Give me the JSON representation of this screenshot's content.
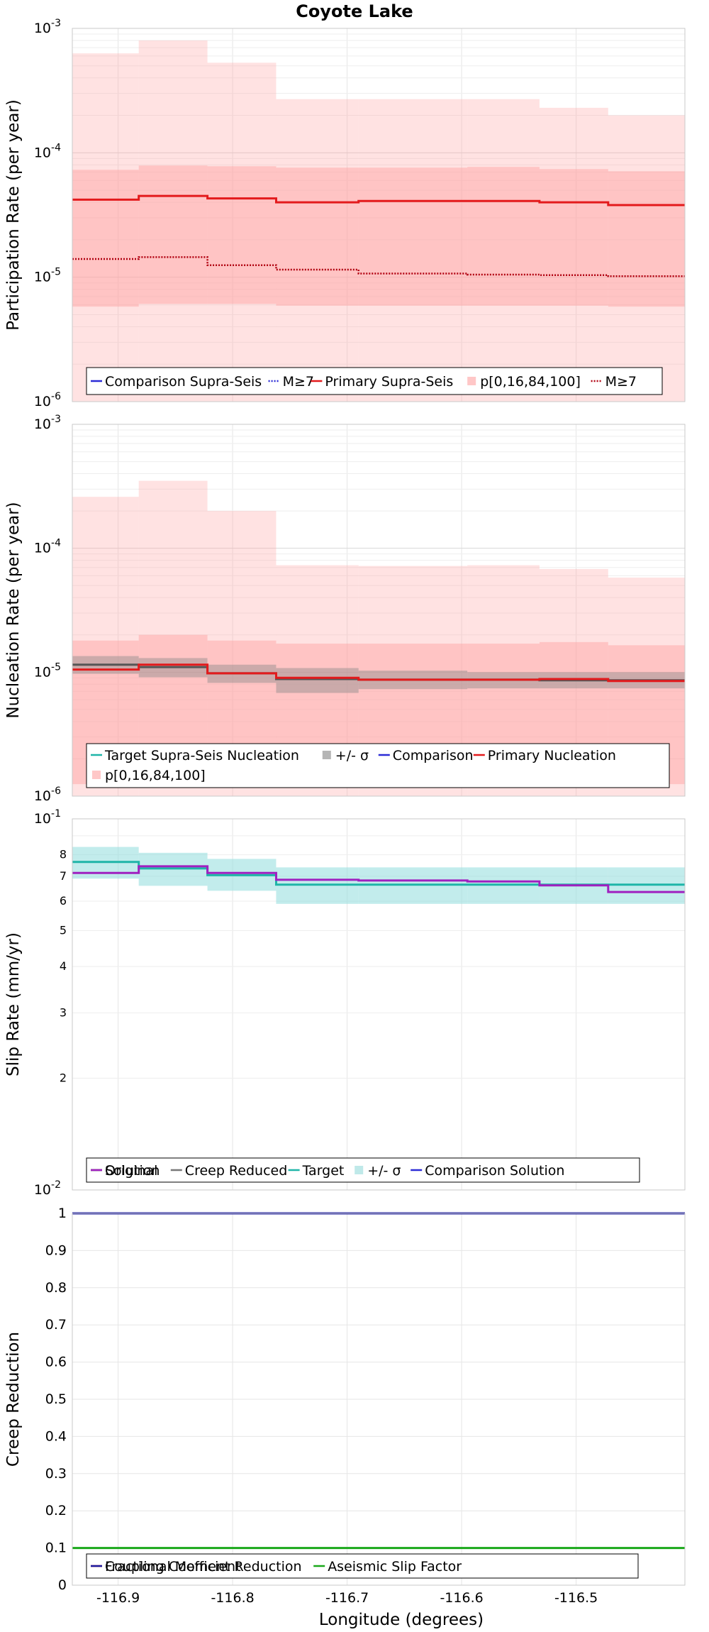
{
  "title": "Coyote Lake",
  "xlabel": "Longitude (degrees)",
  "x_ticks": [
    "-116.9",
    "-116.8",
    "-116.7",
    "-116.6",
    "-116.5"
  ],
  "chart_data": [
    {
      "type": "line",
      "subtype": "step",
      "ylabel": "Participation Rate (per year)",
      "yscale": "log",
      "ylim": [
        1e-06,
        0.001
      ],
      "xlim": [
        -116.94,
        -116.405
      ],
      "x_edges": [
        -116.94,
        -116.882,
        -116.822,
        -116.762,
        -116.69,
        -116.595,
        -116.532,
        -116.472,
        -116.405
      ],
      "bands": [
        {
          "name": "p[0,16,84,100]",
          "color": "#ff9f9f",
          "opacity": 0.3,
          "lower": [
            1e-06,
            1e-06,
            1e-06,
            1e-06,
            1e-06,
            1e-06,
            1e-06,
            1e-06
          ],
          "upper": [
            0.00063,
            0.0008,
            0.00053,
            0.00027,
            0.00027,
            0.00027,
            0.00023,
            0.0002
          ]
        },
        {
          "name": "p[0,16,84,100]",
          "color": "#ff9f9f",
          "opacity": 0.45,
          "lower": [
            5.8e-06,
            6.1e-06,
            6.1e-06,
            5.9e-06,
            5.9e-06,
            5.9e-06,
            5.9e-06,
            5.8e-06
          ],
          "upper": [
            7.3e-05,
            7.9e-05,
            7.8e-05,
            7.6e-05,
            7.6e-05,
            7.7e-05,
            7.4e-05,
            7.1e-05
          ]
        }
      ],
      "series": [
        {
          "name": "Primary Supra-Seis",
          "color": "#e31a1c",
          "style": "solid",
          "values": [
            4.2e-05,
            4.5e-05,
            4.3e-05,
            4e-05,
            4.1e-05,
            4.1e-05,
            4e-05,
            3.8e-05
          ]
        },
        {
          "name": "M≥7",
          "color": "#b0000f",
          "style": "dotted",
          "values": [
            1.4e-05,
            1.45e-05,
            1.25e-05,
            1.15e-05,
            1.07e-05,
            1.05e-05,
            1.04e-05,
            1.02e-05
          ]
        }
      ],
      "legend": {
        "position": "bottom",
        "entries": [
          {
            "label": "Comparison Supra-Seis",
            "color": "#2b2bd6",
            "style": "solid"
          },
          {
            "label": "M≥7",
            "color": "#2b2bd6",
            "style": "dotted"
          },
          {
            "label": "Primary Supra-Seis",
            "color": "#e31a1c",
            "style": "solid"
          },
          {
            "label": "p[0,16,84,100]",
            "color": "#ffc7c7",
            "style": "box"
          },
          {
            "label": "M≥7",
            "color": "#b0000f",
            "style": "dotted"
          }
        ]
      }
    },
    {
      "type": "line",
      "subtype": "step",
      "ylabel": "Nucleation Rate (per year)",
      "yscale": "log",
      "ylim": [
        1e-06,
        0.001
      ],
      "xlim": [
        -116.94,
        -116.405
      ],
      "x_edges": [
        -116.94,
        -116.882,
        -116.822,
        -116.762,
        -116.69,
        -116.595,
        -116.532,
        -116.472,
        -116.405
      ],
      "bands": [
        {
          "name": "p[0,16,84,100]",
          "color": "#ff9f9f",
          "opacity": 0.3,
          "lower": [
            1e-06,
            1e-06,
            1e-06,
            1e-06,
            1e-06,
            1e-06,
            1e-06,
            1e-06
          ],
          "upper": [
            0.00026,
            0.00035,
            0.0002,
            7.3e-05,
            7.2e-05,
            7.3e-05,
            6.8e-05,
            5.8e-05
          ]
        },
        {
          "name": "p[0,16,84,100]",
          "color": "#ff9f9f",
          "opacity": 0.45,
          "lower": [
            1.25e-06,
            1.25e-06,
            1.25e-06,
            1.25e-06,
            1.25e-06,
            1.25e-06,
            1.25e-06,
            1.25e-06
          ],
          "upper": [
            1.8e-05,
            2e-05,
            1.8e-05,
            1.7e-05,
            1.7e-05,
            1.7e-05,
            1.75e-05,
            1.65e-05
          ]
        },
        {
          "name": "+/- σ",
          "color": "#8c8c8c",
          "opacity": 0.45,
          "lower": [
            9.7e-06,
            9.1e-06,
            8.2e-06,
            6.8e-06,
            7.3e-06,
            7.4e-06,
            7.4e-06,
            7.4e-06
          ],
          "upper": [
            1.35e-05,
            1.3e-05,
            1.15e-05,
            1.08e-05,
            1.03e-05,
            1e-05,
            1e-05,
            1e-05
          ]
        }
      ],
      "series": [
        {
          "name": "Target Supra-Seis Nucleation",
          "color": "#555555",
          "style": "solid",
          "values": [
            1.15e-05,
            1.1e-05,
            9.8e-06,
            8.8e-06,
            8.7e-06,
            8.7e-06,
            8.6e-06,
            8.6e-06
          ]
        },
        {
          "name": "Primary Nucleation",
          "color": "#e31a1c",
          "style": "solid",
          "values": [
            1.05e-05,
            1.15e-05,
            9.8e-06,
            9e-06,
            8.7e-06,
            8.7e-06,
            8.8e-06,
            8.5e-06
          ]
        }
      ],
      "legend": {
        "position": "bottom",
        "entries": [
          {
            "label": "Target Supra-Seis Nucleation",
            "color": "#1fb5a8",
            "style": "solid"
          },
          {
            "label": "+/- σ",
            "color": "#b5b5b5",
            "style": "box"
          },
          {
            "label": "Comparison",
            "color": "#2b2bd6",
            "style": "solid"
          },
          {
            "label": "Primary Nucleation",
            "color": "#e31a1c",
            "style": "solid"
          },
          {
            "label": "p[0,16,84,100]",
            "color": "#ffc7c7",
            "style": "box"
          }
        ]
      }
    },
    {
      "type": "line",
      "subtype": "step",
      "ylabel": "Slip Rate (mm/yr)",
      "yscale": "log",
      "ylim": [
        0.01,
        0.1
      ],
      "y_tick_labels": [
        "2",
        "3",
        "4",
        "5",
        "6",
        "7",
        "8"
      ],
      "xlim": [
        -116.94,
        -116.405
      ],
      "x_edges": [
        -116.94,
        -116.882,
        -116.822,
        -116.762,
        -116.69,
        -116.595,
        -116.532,
        -116.472,
        -116.405
      ],
      "bands": [
        {
          "name": "+/- σ",
          "color": "#8fdcdc",
          "opacity": 0.55,
          "lower": [
            0.069,
            0.066,
            0.064,
            0.059,
            0.059,
            0.059,
            0.059,
            0.059
          ],
          "upper": [
            0.084,
            0.081,
            0.078,
            0.074,
            0.074,
            0.074,
            0.074,
            0.074
          ]
        }
      ],
      "series": [
        {
          "name": "Target",
          "color": "#1fb5a8",
          "style": "solid",
          "values": [
            0.0765,
            0.0735,
            0.0705,
            0.0665,
            0.0665,
            0.0665,
            0.0665,
            0.0665
          ]
        },
        {
          "name": "Solution",
          "color": "#a020c0",
          "style": "solid",
          "values": [
            0.0715,
            0.0745,
            0.0715,
            0.0685,
            0.0682,
            0.0678,
            0.0662,
            0.0635
          ]
        }
      ],
      "legend": {
        "position": "bottom",
        "entries": [
          {
            "label": "Original",
            "color": "#000000",
            "style": "solid"
          },
          {
            "label": "Creep Reduced",
            "color": "#777777",
            "style": "solid"
          },
          {
            "label": "Target",
            "color": "#1fb5a8",
            "style": "solid"
          },
          {
            "label": "+/- σ",
            "color": "#bfe9e9",
            "style": "box"
          },
          {
            "label": "Comparison Solution",
            "color": "#2b2bd6",
            "style": "solid"
          },
          {
            "label": "Solution",
            "color": "#a020c0",
            "style": "solid"
          }
        ]
      }
    },
    {
      "type": "line",
      "ylabel": "Creep Reduction",
      "yscale": "linear",
      "ylim": [
        0,
        1
      ],
      "y_tick_labels": [
        "0",
        "0.1",
        "0.2",
        "0.3",
        "0.4",
        "0.5",
        "0.6",
        "0.7",
        "0.8",
        "0.9",
        "1"
      ],
      "xlim": [
        -116.94,
        -116.405
      ],
      "series": [
        {
          "name": "Aseismic Slip Factor",
          "color": "#1aa81a",
          "x": [
            -116.94,
            -116.405
          ],
          "values": [
            0.1,
            0.1
          ]
        },
        {
          "name": "Coupling Coefficient",
          "color": "#1a1aa0",
          "x": [
            -116.94,
            -116.405
          ],
          "values": [
            1.0,
            1.0
          ]
        }
      ],
      "legend": {
        "position": "bottom",
        "entries": [
          {
            "label": "Fractional Moment Reduction",
            "color": "#e31a1c",
            "style": "solid"
          },
          {
            "label": "Aseismic Slip Factor",
            "color": "#1aa81a",
            "style": "solid"
          },
          {
            "label": "Coupling Coefficient",
            "color": "#1a1aa0",
            "style": "solid"
          }
        ]
      }
    }
  ]
}
